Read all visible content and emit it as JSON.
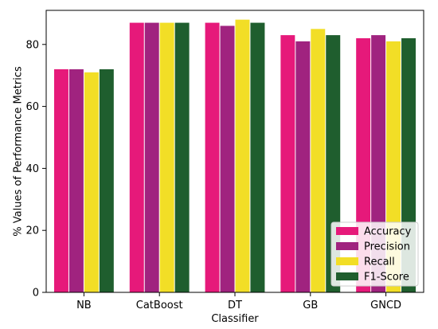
{
  "chart_data": {
    "type": "bar",
    "categories": [
      "NB",
      "CatBoost",
      "DT",
      "GB",
      "GNCD"
    ],
    "series": [
      {
        "name": "Accuracy",
        "color": "#e6197a",
        "values": [
          72,
          87,
          87,
          83,
          82
        ]
      },
      {
        "name": "Precision",
        "color": "#a0237f",
        "values": [
          72,
          87,
          86,
          81,
          83
        ]
      },
      {
        "name": "Recall",
        "color": "#f2de26",
        "values": [
          71,
          87,
          88,
          85,
          81
        ]
      },
      {
        "name": "F1-Score",
        "color": "#1f5e2e",
        "values": [
          72,
          87,
          87,
          83,
          82
        ]
      }
    ],
    "xlabel": "Classifier",
    "ylabel": "% Values of Performance Metrics",
    "ylim": [
      0,
      91
    ],
    "yticks": [
      0,
      20,
      40,
      60,
      80
    ],
    "grid": false,
    "legend_position": "bottom-right"
  }
}
